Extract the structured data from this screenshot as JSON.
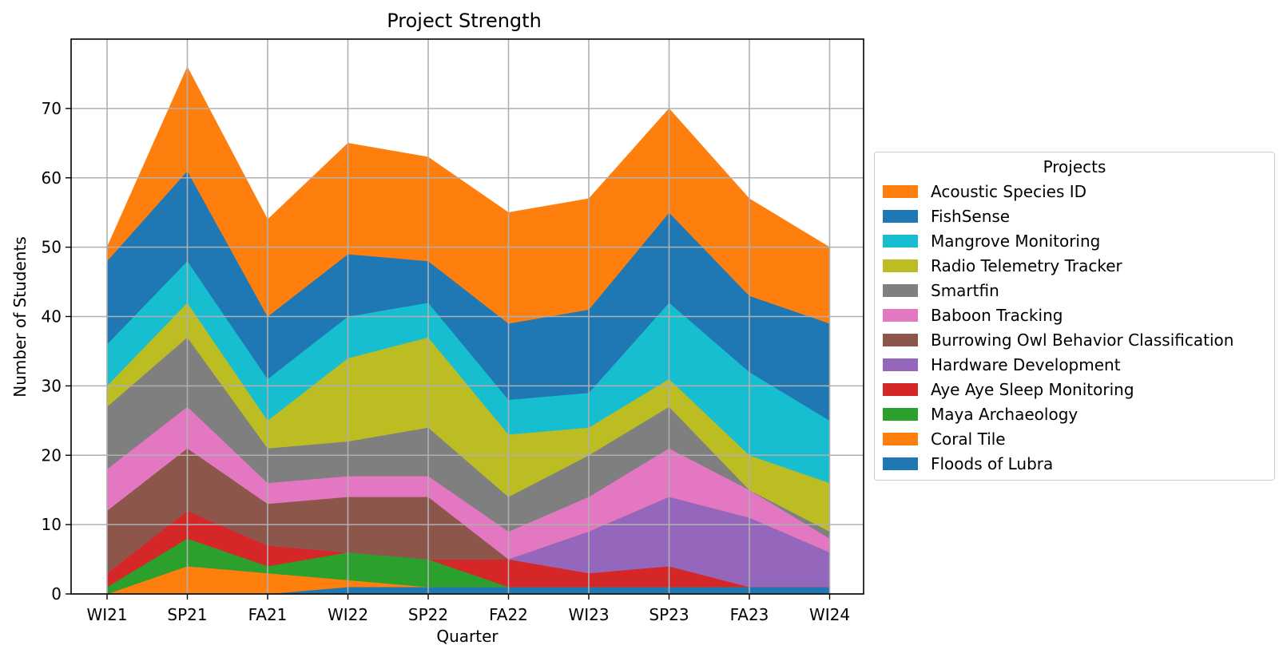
{
  "chart_data": {
    "type": "area",
    "stacked": true,
    "title": "Project Strength",
    "xlabel": "Quarter",
    "ylabel": "Number of Students",
    "categories": [
      "WI21",
      "SP21",
      "FA21",
      "WI22",
      "SP22",
      "FA22",
      "WI23",
      "SP23",
      "FA23",
      "WI24"
    ],
    "ylim": [
      0,
      80
    ],
    "yticks": [
      0,
      10,
      20,
      30,
      40,
      50,
      60,
      70
    ],
    "grid": true,
    "legend": {
      "title": "Projects",
      "placement": "right"
    },
    "series": [
      {
        "name": "Floods of Lubra",
        "color": "#1f77b4",
        "values": [
          0,
          0,
          0,
          1,
          1,
          1,
          1,
          1,
          1,
          1
        ]
      },
      {
        "name": "Coral Tile",
        "color": "#ff7f0e",
        "values": [
          0,
          4,
          3,
          1,
          0,
          0,
          0,
          0,
          0,
          0
        ]
      },
      {
        "name": "Maya Archaeology",
        "color": "#2ca02c",
        "values": [
          1,
          4,
          1,
          4,
          4,
          0,
          0,
          0,
          0,
          0
        ]
      },
      {
        "name": "Aye Aye Sleep Monitoring",
        "color": "#d62728",
        "values": [
          2,
          4,
          3,
          0,
          0,
          4,
          2,
          3,
          0,
          0
        ]
      },
      {
        "name": "Hardware Development",
        "color": "#9467bd",
        "values": [
          0,
          0,
          0,
          0,
          0,
          0,
          6,
          10,
          10,
          5
        ]
      },
      {
        "name": "Burrowing Owl Behavior Classification",
        "color": "#8c564b",
        "values": [
          9,
          9,
          6,
          8,
          9,
          0,
          0,
          0,
          0,
          0
        ]
      },
      {
        "name": "Baboon Tracking",
        "color": "#e377c2",
        "values": [
          6,
          6,
          3,
          3,
          3,
          4,
          5,
          7,
          4,
          2
        ]
      },
      {
        "name": "Smartfin",
        "color": "#7f7f7f",
        "values": [
          9,
          10,
          5,
          5,
          7,
          5,
          6,
          6,
          0,
          1
        ]
      },
      {
        "name": "Radio Telemetry Tracker",
        "color": "#bcbd22",
        "values": [
          3,
          5,
          4,
          12,
          13,
          9,
          4,
          4,
          5,
          7
        ]
      },
      {
        "name": "Mangrove Monitoring",
        "color": "#17becf",
        "values": [
          6,
          6,
          6,
          6,
          5,
          5,
          5,
          11,
          12,
          9
        ]
      },
      {
        "name": "FishSense",
        "color": "#1f77b4",
        "values": [
          12,
          13,
          9,
          9,
          6,
          11,
          12,
          13,
          11,
          14
        ]
      },
      {
        "name": "Acoustic Species ID",
        "color": "#ff7f0e",
        "values": [
          2,
          15,
          14,
          16,
          15,
          16,
          16,
          15,
          14,
          11
        ]
      }
    ]
  }
}
